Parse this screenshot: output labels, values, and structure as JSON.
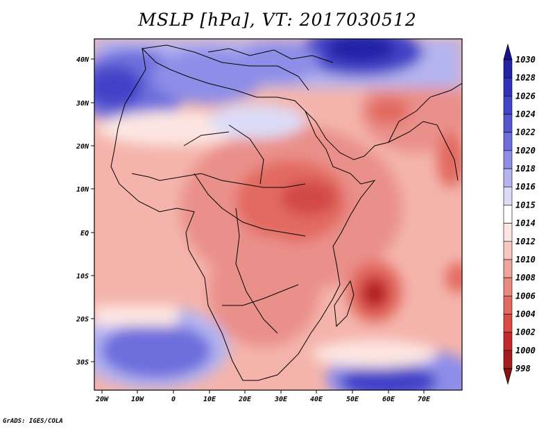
{
  "title": "MSLP [hPa], VT: 2017030512",
  "footer": "GrADS: IGES/COLA",
  "x_ticks": [
    "20W",
    "10W",
    "0",
    "10E",
    "20E",
    "30E",
    "40E",
    "50E",
    "60E",
    "70E"
  ],
  "y_ticks": [
    "40N",
    "30N",
    "20N",
    "10N",
    "EQ",
    "10S",
    "20S",
    "30S"
  ],
  "colorbar": {
    "levels": [
      "1030",
      "1028",
      "1026",
      "1024",
      "1022",
      "1020",
      "1018",
      "1016",
      "1015",
      "1014",
      "1012",
      "1010",
      "1008",
      "1006",
      "1004",
      "1002",
      "1000",
      "998"
    ],
    "colors": [
      "#18128e",
      "#2323a6",
      "#3232b8",
      "#4343c8",
      "#5656d3",
      "#6e6edd",
      "#8e8ee8",
      "#b4b4f0",
      "#dcdcf8",
      "#ffffff",
      "#fde6e2",
      "#f8c6be",
      "#f0a49a",
      "#e98a80",
      "#e26a60",
      "#dc4a42",
      "#c42a2a",
      "#a51c1c",
      "#8b1010"
    ]
  },
  "colors": {
    "high_pressure": "#3232b8",
    "low_pressure": "#c42a2a",
    "neutral": "#ffffff"
  }
}
